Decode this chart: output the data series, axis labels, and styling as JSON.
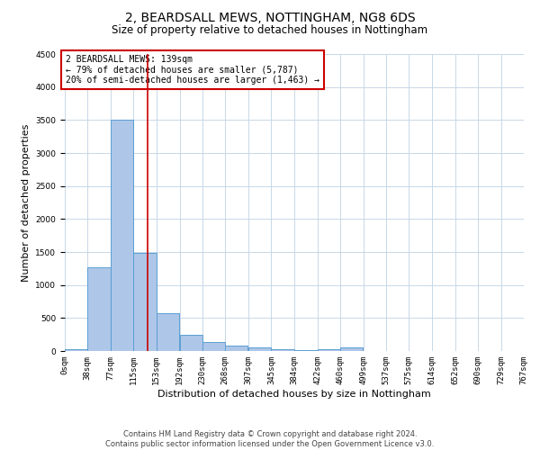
{
  "title": "2, BEARDSALL MEWS, NOTTINGHAM, NG8 6DS",
  "subtitle": "Size of property relative to detached houses in Nottingham",
  "xlabel": "Distribution of detached houses by size in Nottingham",
  "ylabel": "Number of detached properties",
  "bin_labels": [
    "0sqm",
    "38sqm",
    "77sqm",
    "115sqm",
    "153sqm",
    "192sqm",
    "230sqm",
    "268sqm",
    "307sqm",
    "345sqm",
    "384sqm",
    "422sqm",
    "460sqm",
    "499sqm",
    "537sqm",
    "575sqm",
    "614sqm",
    "652sqm",
    "690sqm",
    "729sqm",
    "767sqm"
  ],
  "bar_heights": [
    30,
    1270,
    3500,
    1480,
    570,
    240,
    130,
    80,
    50,
    30,
    20,
    30,
    50,
    0,
    0,
    0,
    0,
    0,
    0,
    0
  ],
  "bin_edges": [
    0,
    38,
    77,
    115,
    153,
    192,
    230,
    268,
    307,
    345,
    384,
    422,
    460,
    499,
    537,
    575,
    614,
    652,
    690,
    729,
    767
  ],
  "bar_color": "#aec6e8",
  "bar_edge_color": "#5a9fd4",
  "vline_x": 139,
  "vline_color": "#cc0000",
  "ylim": [
    0,
    4500
  ],
  "annotation_text": "2 BEARDSALL MEWS: 139sqm\n← 79% of detached houses are smaller (5,787)\n20% of semi-detached houses are larger (1,463) →",
  "annotation_box_color": "#cc0000",
  "footer1": "Contains HM Land Registry data © Crown copyright and database right 2024.",
  "footer2": "Contains public sector information licensed under the Open Government Licence v3.0.",
  "background_color": "#ffffff",
  "grid_color": "#c8d8e8",
  "title_fontsize": 10,
  "subtitle_fontsize": 8.5,
  "ylabel_fontsize": 8,
  "xlabel_fontsize": 8,
  "tick_fontsize": 6.5,
  "annotation_fontsize": 7,
  "footer_fontsize": 6
}
